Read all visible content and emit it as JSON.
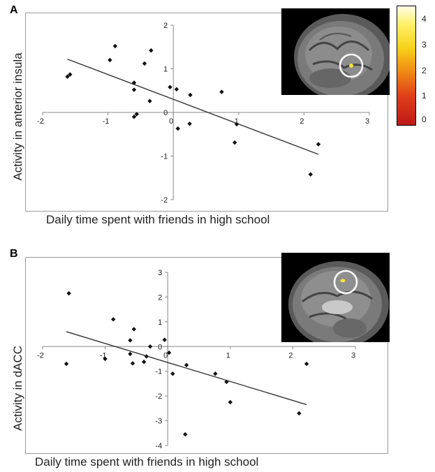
{
  "panels": [
    {
      "letter": "A",
      "ylabel": "Activity in anterior insula",
      "xlabel": "Daily time spent with friends in high school"
    },
    {
      "letter": "B",
      "ylabel": "Activity in dACC",
      "xlabel": "Daily time spent with friends in high school"
    }
  ],
  "colorbar": {
    "labels": [
      "4",
      "3",
      "2",
      "1",
      "0"
    ],
    "colors": [
      "#fffde8",
      "#f7d21a",
      "#f08a13",
      "#c01818"
    ]
  },
  "chart_data": [
    {
      "type": "scatter",
      "title": "",
      "xlabel": "Daily time spent with friends in high school",
      "ylabel": "Activity in anterior insula",
      "xlim": [
        -2,
        3
      ],
      "ylim": [
        -2,
        2
      ],
      "x_ticks": [
        "-2",
        "-1",
        "0",
        "1",
        "2",
        "3"
      ],
      "y_ticks": [
        "2",
        "1",
        "0",
        "-1",
        "-2"
      ],
      "grid": false,
      "points": [
        {
          "x": -1.62,
          "y": 0.82
        },
        {
          "x": -1.58,
          "y": 0.87
        },
        {
          "x": -0.97,
          "y": 1.2
        },
        {
          "x": -0.89,
          "y": 1.52
        },
        {
          "x": -0.6,
          "y": 0.68
        },
        {
          "x": -0.6,
          "y": 0.52
        },
        {
          "x": -0.44,
          "y": 1.12
        },
        {
          "x": -0.34,
          "y": 1.42
        },
        {
          "x": -0.36,
          "y": 0.26
        },
        {
          "x": -0.6,
          "y": -0.1
        },
        {
          "x": -0.56,
          "y": -0.04
        },
        {
          "x": -0.05,
          "y": 0.58
        },
        {
          "x": 0.05,
          "y": 0.53
        },
        {
          "x": 0.07,
          "y": -0.37
        },
        {
          "x": 0.26,
          "y": 0.4
        },
        {
          "x": 0.25,
          "y": -0.26
        },
        {
          "x": 0.74,
          "y": 0.47
        },
        {
          "x": 0.97,
          "y": -0.27
        },
        {
          "x": 0.94,
          "y": -0.69
        },
        {
          "x": 2.1,
          "y": -1.42
        },
        {
          "x": 2.22,
          "y": -0.73
        }
      ],
      "trendline": {
        "x": [
          -1.62,
          2.22
        ],
        "y": [
          1.22,
          -0.96
        ]
      }
    },
    {
      "type": "scatter",
      "title": "",
      "xlabel": "Daily time spent with friends in high school",
      "ylabel": "Activity in dACC",
      "xlim": [
        -2,
        3
      ],
      "ylim": [
        -4,
        3
      ],
      "x_ticks": [
        "-2",
        "-1",
        "0",
        "1",
        "2",
        "3"
      ],
      "y_ticks": [
        "3",
        "2",
        "1",
        "0",
        "-1",
        "-2",
        "-3",
        "-4"
      ],
      "grid": false,
      "points": [
        {
          "x": -1.58,
          "y": 2.15
        },
        {
          "x": -1.62,
          "y": -0.7
        },
        {
          "x": -1.0,
          "y": -0.5
        },
        {
          "x": -0.87,
          "y": 1.1
        },
        {
          "x": -0.54,
          "y": 0.7
        },
        {
          "x": -0.6,
          "y": 0.25
        },
        {
          "x": -0.6,
          "y": -0.3
        },
        {
          "x": -0.56,
          "y": -0.68
        },
        {
          "x": -0.38,
          "y": -0.62
        },
        {
          "x": -0.34,
          "y": -0.4
        },
        {
          "x": -0.28,
          "y": 0.0
        },
        {
          "x": -0.05,
          "y": 0.27
        },
        {
          "x": 0.02,
          "y": -0.25
        },
        {
          "x": 0.08,
          "y": -1.1
        },
        {
          "x": 0.3,
          "y": -0.75
        },
        {
          "x": 0.28,
          "y": -3.55
        },
        {
          "x": 0.76,
          "y": -1.1
        },
        {
          "x": 0.94,
          "y": -1.43
        },
        {
          "x": 1.0,
          "y": -2.25
        },
        {
          "x": 2.1,
          "y": -2.7
        },
        {
          "x": 2.22,
          "y": -0.7
        }
      ],
      "trendline": {
        "x": [
          -1.62,
          2.22
        ],
        "y": [
          0.6,
          -2.35
        ]
      }
    }
  ]
}
